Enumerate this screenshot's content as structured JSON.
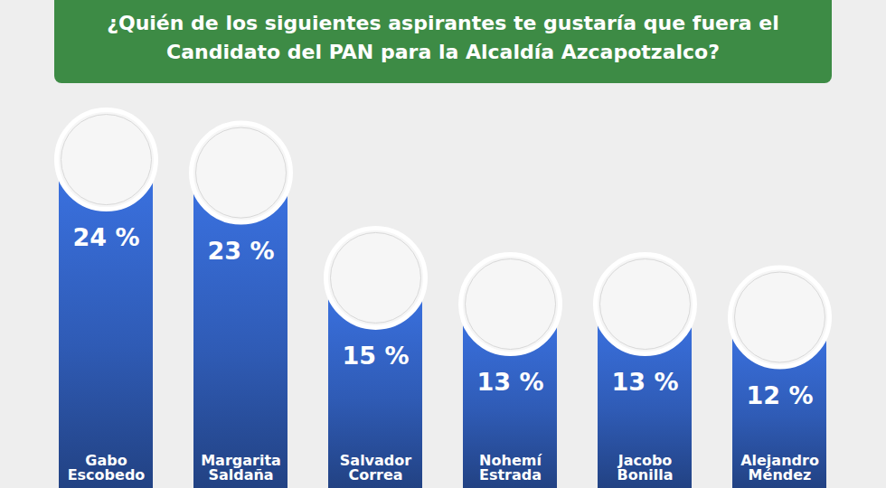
{
  "chart_data": {
    "type": "bar",
    "title": "¿Quién de los siguientes aspirantes te gustaría que fuera el Candidato del PAN para la Alcaldía Azcapotzalco?",
    "categories": [
      "Gabo Escobedo",
      "Margarita Saldaña",
      "Salvador Correa",
      "Nohemí Estrada",
      "Jacobo Bonilla",
      "Alejandro Méndez"
    ],
    "values": [
      24,
      23,
      15,
      13,
      13,
      12
    ],
    "value_labels": [
      "24 %",
      "23 %",
      "15 %",
      "13 %",
      "13 %",
      "12 %"
    ],
    "data_labels": true,
    "color": "#2f5bb5",
    "ylim": [
      0,
      26
    ],
    "tick_labels": false,
    "grid": false
  }
}
